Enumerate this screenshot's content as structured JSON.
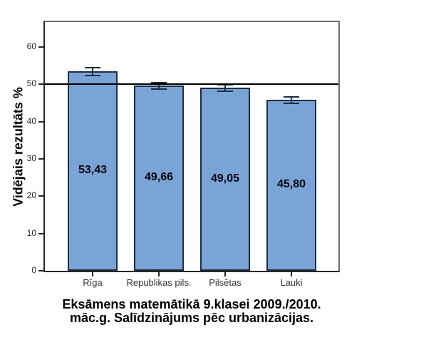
{
  "chart_data": {
    "type": "bar",
    "categories": [
      "Rīga",
      "Republikas pils.",
      "Pilsētas",
      "Lauki"
    ],
    "values": [
      53.43,
      49.66,
      49.05,
      45.8
    ],
    "value_labels": [
      "53,43",
      "49,66",
      "49,05",
      "45,80"
    ],
    "errors": [
      1.0,
      0.85,
      0.8,
      0.8
    ],
    "yticks": [
      0,
      10,
      20,
      30,
      40,
      50,
      60
    ],
    "ylim": [
      0,
      66.7
    ],
    "reference_line": 50,
    "grid": false,
    "legend": false,
    "ylabel": "Vidējais rezultāts %",
    "xlabel": "",
    "title": "Eksāmens matemātikā 9.klasei 2009./2010. māc.g. Salīdzinājums pēc urbanizācijas.",
    "title_lines": [
      "Eksāmens matemātikā 9.klasei 2009./2010.",
      "māc.g. Salīdzinājums pēc urbanizācijas."
    ],
    "colors": {
      "bar_fill": "#7aa4d5",
      "bar_border": "#1d2c44",
      "error_bar": "#1e2d3f",
      "reference_line": "#000000",
      "frame_gray": "#6e6e6e",
      "axis_black": "#262626"
    }
  }
}
